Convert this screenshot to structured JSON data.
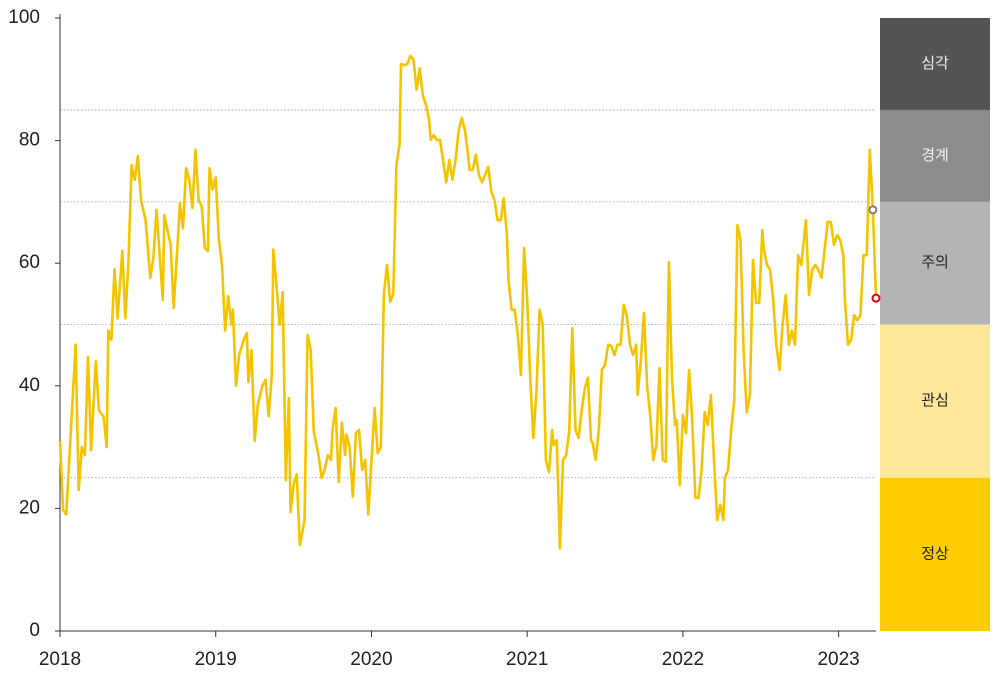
{
  "chart_data": {
    "type": "line",
    "x": [
      2018,
      2018.02,
      2018.04,
      2018.06,
      2018.1,
      2018.12,
      2018.14,
      2018.16,
      2018.18,
      2018.2,
      2018.23,
      2018.25,
      2018.28,
      2018.3,
      2018.31,
      2018.33,
      2018.35,
      2018.37,
      2018.4,
      2018.42,
      2018.44,
      2018.46,
      2018.48,
      2018.5,
      2018.52,
      2018.55,
      2018.58,
      2018.6,
      2018.62,
      2018.66,
      2018.67,
      2018.71,
      2018.73,
      2018.76,
      2018.77,
      2018.79,
      2018.81,
      2018.83,
      2018.85,
      2018.87,
      2018.89,
      2018.91,
      2018.93,
      2018.95,
      2018.96,
      2018.98,
      2019,
      2019.02,
      2019.04,
      2019.06,
      2019.08,
      2019.1,
      2019.11,
      2019.13,
      2019.15,
      2019.18,
      2019.2,
      2019.21,
      2019.23,
      2019.25,
      2019.27,
      2019.3,
      2019.32,
      2019.34,
      2019.36,
      2019.37,
      2019.39,
      2019.41,
      2019.43,
      2019.45,
      2019.47,
      2019.48,
      2019.5,
      2019.52,
      2019.54,
      2019.57,
      2019.59,
      2019.61,
      2019.63,
      2019.66,
      2019.68,
      2019.7,
      2019.72,
      2019.74,
      2019.75,
      2019.77,
      2019.79,
      2019.81,
      2019.83,
      2019.84,
      2019.86,
      2019.88,
      2019.9,
      2019.92,
      2019.94,
      2019.96,
      2019.98,
      2020.01,
      2020.02,
      2020.04,
      2020.06,
      2020.08,
      2020.1,
      2020.12,
      2020.14,
      2020.16,
      2020.18,
      2020.19,
      2020.21,
      2020.23,
      2020.25,
      2020.27,
      2020.29,
      2020.31,
      2020.33,
      2020.35,
      2020.37,
      2020.38,
      2020.4,
      2020.42,
      2020.44,
      2020.46,
      2020.48,
      2020.5,
      2020.52,
      2020.54,
      2020.56,
      2020.58,
      2020.6,
      2020.62,
      2020.63,
      2020.65,
      2020.67,
      2020.69,
      2020.71,
      2020.73,
      2020.75,
      2020.77,
      2020.79,
      2020.81,
      2020.83,
      2020.85,
      2020.87,
      2020.88,
      2020.9,
      2020.92,
      2020.94,
      2020.96,
      2020.98,
      2021,
      2021.02,
      2021.04,
      2021.06,
      2021.08,
      2021.1,
      2021.12,
      2021.14,
      2021.16,
      2021.17,
      2021.19,
      2021.21,
      2021.23,
      2021.25,
      2021.27,
      2021.29,
      2021.31,
      2021.33,
      2021.35,
      2021.37,
      2021.39,
      2021.41,
      2021.42,
      2021.44,
      2021.46,
      2021.48,
      2021.5,
      2021.52,
      2021.54,
      2021.56,
      2021.58,
      2021.6,
      2021.62,
      2021.64,
      2021.66,
      2021.68,
      2021.7,
      2021.71,
      2021.73,
      2021.75,
      2021.77,
      2021.79,
      2021.81,
      2021.83,
      2021.85,
      2021.87,
      2021.89,
      2021.91,
      2021.93,
      2021.95,
      2021.96,
      2021.98,
      2022,
      2022.02,
      2022.04,
      2022.06,
      2022.08,
      2022.1,
      2022.12,
      2022.14,
      2022.16,
      2022.18,
      2022.2,
      2022.22,
      2022.24,
      2022.26,
      2022.27,
      2022.29,
      2022.31,
      2022.33,
      2022.35,
      2022.37,
      2022.39,
      2022.41,
      2022.43,
      2022.45,
      2022.47,
      2022.49,
      2022.51,
      2022.52,
      2022.54,
      2022.56,
      2022.58,
      2022.6,
      2022.62,
      2022.64,
      2022.66,
      2022.68,
      2022.7,
      2022.72,
      2022.74,
      2022.76,
      2022.78,
      2022.79,
      2022.81,
      2022.83,
      2022.85,
      2022.87,
      2022.89,
      2022.91,
      2022.93,
      2022.95,
      2022.97,
      2022.99,
      2023.01,
      2023.03,
      2023.04,
      2023.06,
      2023.08,
      2023.1,
      2023.12,
      2023.14,
      2023.16,
      2023.18,
      2023.2,
      2023.22,
      2023.24
    ],
    "series": [
      {
        "color": "#f5c400",
        "values": [
          31,
          19.7,
          19,
          28,
          46.7,
          23,
          30,
          28.7,
          44.7,
          29.5,
          44,
          36,
          35,
          30,
          49,
          47.5,
          59,
          51,
          62,
          51,
          60.5,
          76,
          73.6,
          77.5,
          70.3,
          67,
          57.6,
          61,
          68.7,
          54,
          67.9,
          63,
          52.7,
          65.4,
          69.8,
          65.7,
          75.5,
          73.6,
          69,
          78.5,
          70.3,
          69.3,
          62.5,
          62,
          75.5,
          72,
          74,
          64,
          59.7,
          49,
          54.6,
          50,
          52.4,
          40,
          45,
          47.5,
          48.6,
          40.6,
          45.8,
          31,
          36.9,
          40,
          41,
          35,
          41.8,
          62.2,
          56.4,
          50,
          55.3,
          24.6,
          38,
          19.4,
          23.8,
          25.6,
          14,
          18,
          48.3,
          45.8,
          32.5,
          28.7,
          25,
          26.3,
          28.7,
          27.9,
          32.8,
          36.4,
          24.3,
          34,
          28.7,
          32,
          30,
          21.9,
          32.3,
          32.8,
          26.3,
          27.9,
          19,
          32,
          36.4,
          29,
          30,
          55,
          59.7,
          53.7,
          55,
          76,
          79.3,
          92.5,
          92.3,
          92.5,
          93.8,
          93.2,
          88.3,
          91.8,
          87.4,
          85.8,
          83.4,
          80.1,
          80.9,
          80.1,
          80.1,
          76.8,
          73.2,
          76.8,
          73.6,
          76.8,
          81.7,
          83.7,
          81.7,
          77.7,
          75.2,
          75.2,
          77.7,
          74.4,
          73.2,
          74.4,
          75.7,
          71.6,
          70.3,
          67,
          67,
          70.6,
          64.6,
          57.3,
          52.4,
          52.4,
          48.3,
          41.8,
          62.5,
          54,
          41,
          31.5,
          39.3,
          52.4,
          50,
          27.9,
          25.9,
          32.8,
          30.3,
          31.1,
          13.5,
          27.9,
          28.7,
          32.5,
          49.4,
          32.8,
          31.5,
          36,
          39.6,
          41.3,
          31.1,
          30.7,
          27.9,
          32.8,
          42.6,
          43.4,
          46.7,
          46.5,
          45,
          46.7,
          46.7,
          53.2,
          51.4,
          46.7,
          45,
          46.7,
          38.5,
          44.2,
          51.9,
          40,
          35.2,
          27.9,
          30.3,
          42.9,
          27.9,
          27.6,
          60.2,
          41,
          33.6,
          34.4,
          23.8,
          35.2,
          32.3,
          42.6,
          34.4,
          21.7,
          21.7,
          26.3,
          35.7,
          33.6,
          38.5,
          27.9,
          18.1,
          20.6,
          18.1,
          25,
          26.3,
          32.8,
          37.7,
          66.2,
          63.8,
          45.8,
          35.7,
          38.5,
          60.5,
          53.5,
          53.5,
          65.4,
          62.2,
          59.7,
          58.9,
          54,
          46.7,
          42.6,
          50,
          54.8,
          46.7,
          49,
          46.7,
          61.3,
          59.7,
          64.6,
          67,
          54.8,
          58.9,
          59.7,
          58.9,
          57.6,
          62.2,
          66.7,
          66.7,
          63,
          64.6,
          63.8,
          61.3,
          54,
          46.7,
          47.5,
          51.5,
          50.7,
          51.5,
          61.3,
          61.3,
          78.5,
          68.7,
          54.3
        ]
      }
    ],
    "last_points_colors": [
      "#7f7f7f",
      "#e60012"
    ],
    "xlim": [
      2018,
      2023.24
    ],
    "xticks": [
      2018,
      2019,
      2020,
      2021,
      2022,
      2023
    ],
    "ylim": [
      0,
      100
    ],
    "yticks": [
      0,
      20,
      40,
      60,
      80,
      100
    ],
    "bands": [
      {
        "label": "심각",
        "from": 85,
        "to": 100,
        "color": "#545454",
        "label_color": "#eeeeee"
      },
      {
        "label": "경계",
        "from": 70,
        "to": 85,
        "color": "#8c8c8c",
        "label_color": "#f2f2f2"
      },
      {
        "label": "주의",
        "from": 50,
        "to": 70,
        "color": "#b4b4b4",
        "label_color": "#222222"
      },
      {
        "label": "관심",
        "from": 25,
        "to": 50,
        "color": "#fde79a",
        "label_color": "#222222"
      },
      {
        "label": "정상",
        "from": 0,
        "to": 25,
        "color": "#ffcc00",
        "label_color": "#222222"
      }
    ]
  }
}
